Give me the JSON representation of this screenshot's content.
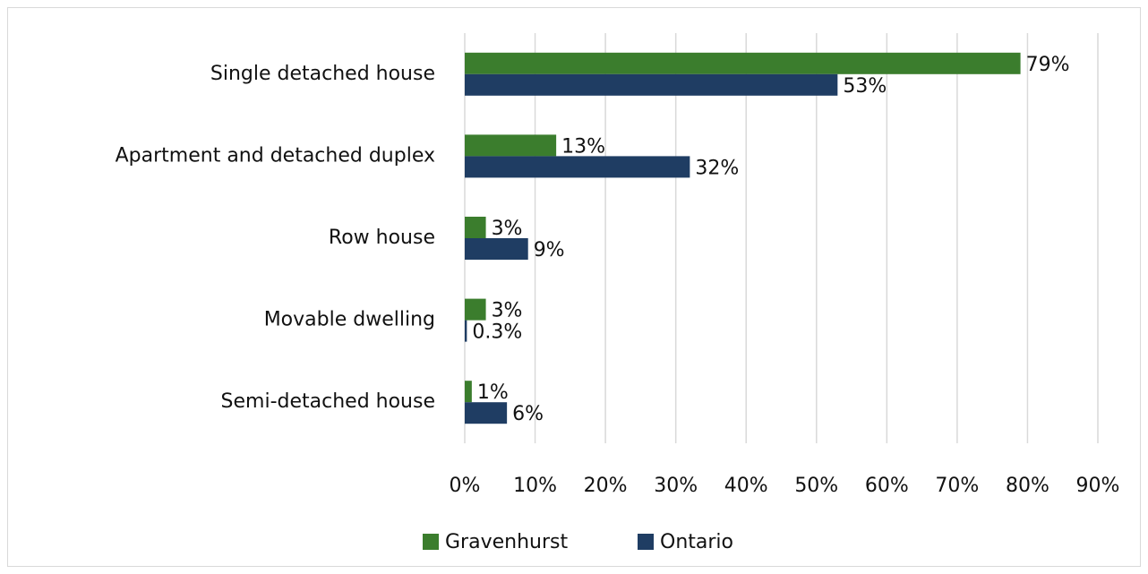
{
  "chart_data": {
    "type": "bar",
    "orientation": "horizontal",
    "categories": [
      "Single detached house",
      "Apartment and detached duplex",
      "Row house",
      "Movable dwelling",
      "Semi-detached house"
    ],
    "series": [
      {
        "name": "Gravenhurst",
        "color": "#3b7d2d",
        "values": [
          79,
          13,
          3,
          3,
          1
        ],
        "value_labels": [
          "79%",
          "13%",
          "3%",
          "3%",
          "1%"
        ]
      },
      {
        "name": "Ontario",
        "color": "#1f3d63",
        "values": [
          53,
          32,
          9,
          0.3,
          6
        ],
        "value_labels": [
          "53%",
          "32%",
          "9%",
          "0.3%",
          "6%"
        ]
      }
    ],
    "xlim": [
      0,
      90
    ],
    "xticks": [
      {
        "value": 0,
        "label": "0%"
      },
      {
        "value": 10,
        "label": "10%"
      },
      {
        "value": 20,
        "label": "20%"
      },
      {
        "value": 30,
        "label": "30%"
      },
      {
        "value": 40,
        "label": "40%"
      },
      {
        "value": 50,
        "label": "50%"
      },
      {
        "value": 60,
        "label": "60%"
      },
      {
        "value": 70,
        "label": "70%"
      },
      {
        "value": 80,
        "label": "80%"
      },
      {
        "value": 90,
        "label": "90%"
      }
    ],
    "grid": true,
    "legend": "bottom"
  }
}
